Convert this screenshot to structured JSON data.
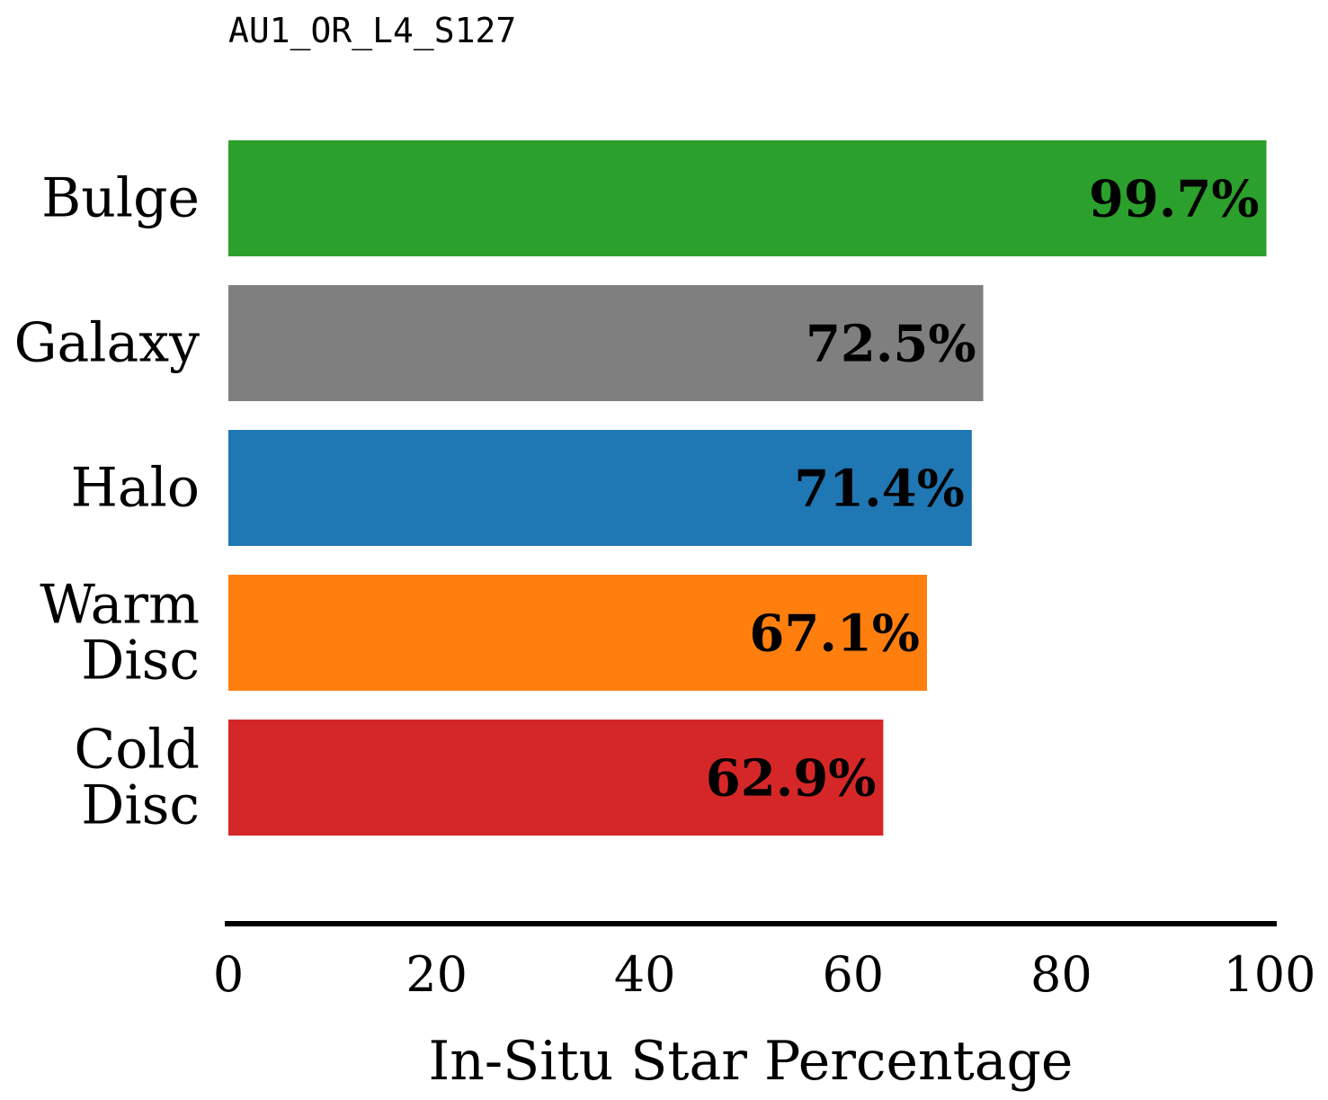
{
  "chart_data": {
    "type": "bar",
    "orientation": "horizontal",
    "title": "AU1_OR_L4_S127",
    "xlabel": "In-Situ Star Percentage",
    "ylabel": "",
    "xlim": [
      0,
      100
    ],
    "xticks": [
      0,
      20,
      40,
      60,
      80,
      100
    ],
    "grid": false,
    "categories": [
      [
        "Bulge"
      ],
      [
        "Galaxy"
      ],
      [
        "Halo"
      ],
      [
        "Warm",
        "Disc"
      ],
      [
        "Cold",
        "Disc"
      ]
    ],
    "values": [
      99.7,
      72.5,
      71.4,
      67.1,
      62.9
    ],
    "value_labels": [
      "99.7%",
      "72.5%",
      "71.4%",
      "67.1%",
      "62.9%"
    ],
    "colors": [
      "#2ca02c",
      "#7f7f7f",
      "#1f77b4",
      "#ff7f0e",
      "#d62728"
    ]
  }
}
